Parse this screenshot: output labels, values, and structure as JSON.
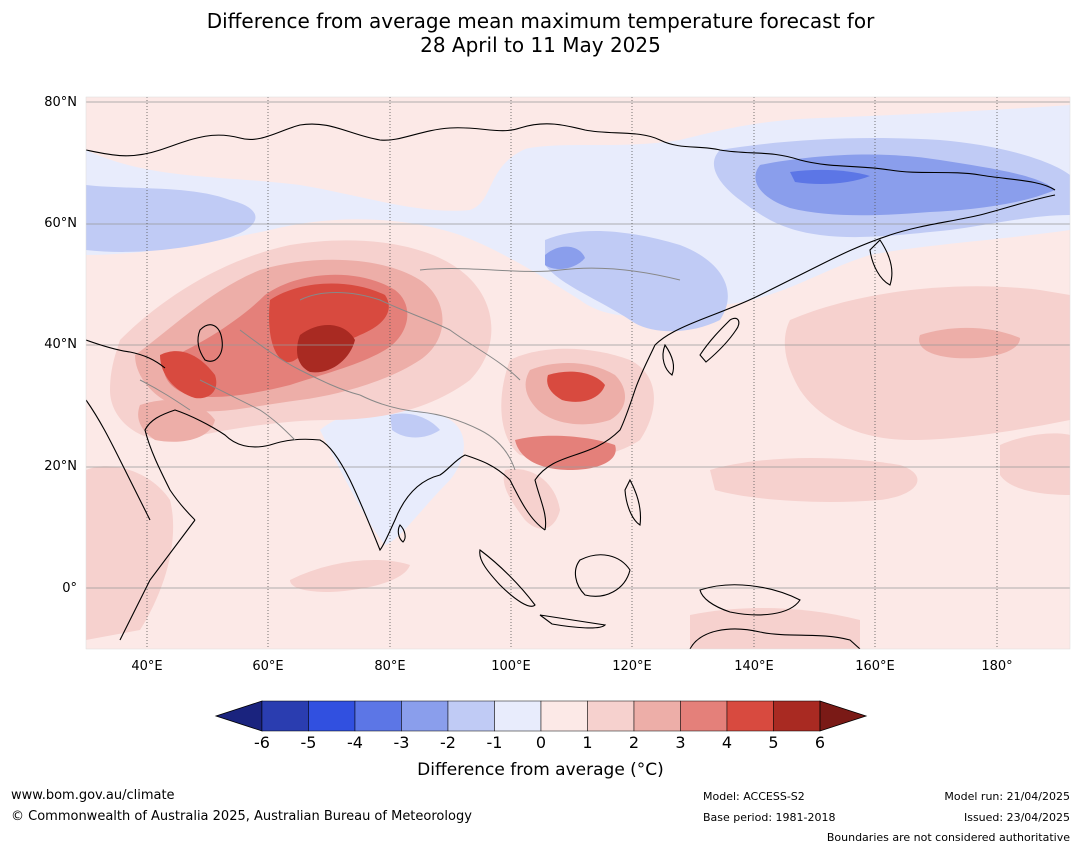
{
  "title": {
    "line1": "Difference from average mean maximum temperature forecast for",
    "line2": "28 April to 11 May 2025"
  },
  "map": {
    "lat_labels": [
      "80°N",
      "60°N",
      "40°N",
      "20°N",
      "0°"
    ],
    "lon_labels": [
      "40°E",
      "60°E",
      "80°E",
      "100°E",
      "120°E",
      "140°E",
      "160°E",
      "180°"
    ],
    "extent": {
      "lon_min": 30,
      "lon_max": 192,
      "lat_min": -10,
      "lat_max": 80
    },
    "anomaly_regions": [
      {
        "name": "central asia core",
        "level": 5
      },
      {
        "name": "caspian iran",
        "level": 4
      },
      {
        "name": "central china",
        "level": 4
      },
      {
        "name": "south china",
        "level": 3
      },
      {
        "name": "east siberia",
        "level": -3
      },
      {
        "name": "west siberia",
        "level": -2
      },
      {
        "name": "india",
        "level": -1
      }
    ]
  },
  "colorbar": {
    "ticks": [
      "-6",
      "-5",
      "-4",
      "-3",
      "-2",
      "-1",
      "0",
      "1",
      "2",
      "3",
      "4",
      "5",
      "6"
    ],
    "colors": [
      "#1a237e",
      "#2a3db0",
      "#3150e0",
      "#5c76e6",
      "#8a9eec",
      "#c0cbf5",
      "#e8ecfc",
      "#fce9e7",
      "#f6d1ce",
      "#edaea8",
      "#e4807a",
      "#d84a3f",
      "#a92a22",
      "#7a1a16"
    ],
    "label": "Difference from average (°C)"
  },
  "footer": {
    "url": "www.bom.gov.au/climate",
    "copyright": "© Commonwealth of Australia 2025, Australian Bureau of Meteorology",
    "model": "Model: ACCESS-S2",
    "base_period": "Base period: 1981-2018",
    "model_run": "Model run: 21/04/2025",
    "issued": "Issued: 23/04/2025",
    "disclaimer": "Boundaries are not considered authoritative"
  }
}
